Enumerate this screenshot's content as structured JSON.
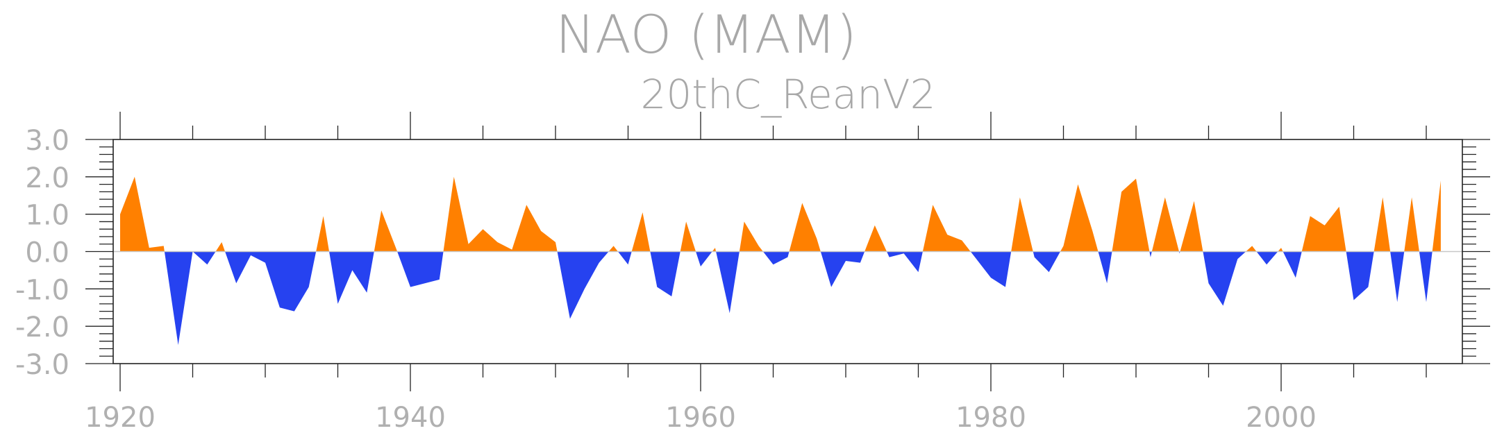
{
  "chart_data": {
    "type": "area",
    "title": "NAO (MAM)",
    "subtitle": "20thC_ReanV2",
    "xlabel": "",
    "ylabel": "",
    "xlim": [
      1920,
      2012
    ],
    "ylim": [
      -3.0,
      3.0
    ],
    "x_ticks": [
      1920,
      1940,
      1960,
      1980,
      2000
    ],
    "y_ticks": [
      "-3.0",
      "-2.0",
      "-1.0",
      "0.0",
      "1.0",
      "2.0",
      "3.0"
    ],
    "grid": false,
    "positive_color": "#ff8000",
    "negative_color": "#2642f0",
    "x": [
      1920,
      1921,
      1922,
      1923,
      1924,
      1925,
      1926,
      1927,
      1928,
      1929,
      1930,
      1931,
      1932,
      1933,
      1934,
      1935,
      1936,
      1937,
      1938,
      1939,
      1940,
      1941,
      1942,
      1943,
      1944,
      1945,
      1946,
      1947,
      1948,
      1949,
      1950,
      1951,
      1952,
      1953,
      1954,
      1955,
      1956,
      1957,
      1958,
      1959,
      1960,
      1961,
      1962,
      1963,
      1964,
      1965,
      1966,
      1967,
      1968,
      1969,
      1970,
      1971,
      1972,
      1973,
      1974,
      1975,
      1976,
      1977,
      1978,
      1979,
      1980,
      1981,
      1982,
      1983,
      1984,
      1985,
      1986,
      1987,
      1988,
      1989,
      1990,
      1991,
      1992,
      1993,
      1994,
      1995,
      1996,
      1997,
      1998,
      1999,
      2000,
      2001,
      2002,
      2003,
      2004,
      2005,
      2006,
      2007,
      2008,
      2009,
      2010,
      2011
    ],
    "values": [
      1.0,
      2.0,
      0.1,
      0.15,
      -2.5,
      0.0,
      -0.35,
      0.25,
      -0.85,
      -0.1,
      -0.3,
      -1.5,
      -1.6,
      -0.95,
      0.95,
      -1.4,
      -0.5,
      -1.1,
      1.1,
      0.1,
      -0.95,
      -0.85,
      -0.75,
      2.0,
      0.2,
      0.6,
      0.25,
      0.05,
      1.25,
      0.55,
      0.25,
      -1.8,
      -1.0,
      -0.3,
      0.15,
      -0.35,
      1.05,
      -0.95,
      -1.2,
      0.8,
      -0.4,
      0.1,
      -1.65,
      0.8,
      0.15,
      -0.35,
      -0.15,
      1.3,
      0.35,
      -0.95,
      -0.25,
      -0.3,
      0.7,
      -0.15,
      -0.05,
      -0.55,
      1.25,
      0.45,
      0.3,
      -0.2,
      -0.7,
      -0.95,
      1.45,
      -0.15,
      -0.55,
      0.15,
      1.8,
      0.55,
      -0.85,
      1.6,
      1.95,
      -0.15,
      1.45,
      -0.05,
      1.35,
      -0.85,
      -1.45,
      -0.2,
      0.15,
      -0.35,
      0.1,
      -0.7,
      0.95,
      0.7,
      1.2,
      -1.3,
      -0.95,
      1.45,
      -1.35,
      1.45,
      -1.35,
      1.9
    ]
  }
}
